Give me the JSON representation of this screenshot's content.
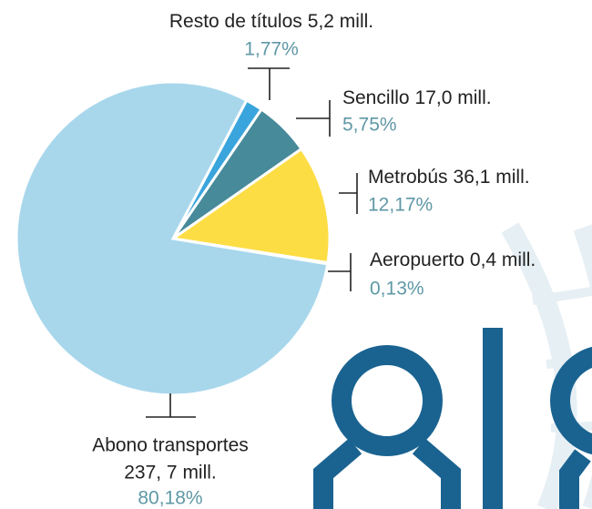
{
  "chart_data": {
    "type": "pie",
    "categories": [
      "Resto de títulos",
      "Sencillo",
      "Metrobús",
      "Aeropuerto",
      "Abono transportes"
    ],
    "amount_labels": [
      "5,2 mill.",
      "17,0 mill.",
      "36,1 mill.",
      "0,4 mill.",
      "237, 7 mill."
    ],
    "values": [
      1.77,
      5.75,
      12.17,
      0.13,
      80.18
    ],
    "value_labels": [
      "1,77%",
      "5,75%",
      "12,17%",
      "0,13%",
      "80,18%"
    ],
    "colors": [
      "#3aa5dc",
      "#478a9a",
      "#fddd44",
      "#4a7f8f",
      "#a8d7ec"
    ]
  }
}
